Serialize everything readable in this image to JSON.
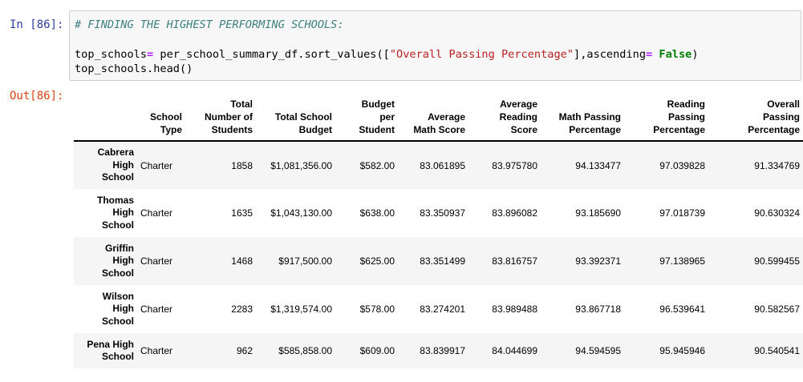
{
  "in_prompt": "In [86]:",
  "out_prompt": "Out[86]:",
  "code": {
    "comment": "# FINDING THE HIGHEST PERFORMING SCHOOLS:",
    "l2_a": "top_schools",
    "l2_op": "=",
    "l2_b": " per_school_summary_df.sort_values([",
    "l2_str": "\"Overall Passing Percentage\"",
    "l2_c": "],ascending",
    "l2_op2": "=",
    "l2_kw": " False",
    "l2_d": ")",
    "l3": "top_schools.head()"
  },
  "table": {
    "columns": [
      "School\nType",
      "Total\nNumber of\nStudents",
      "Total School\nBudget",
      "Budget\nper\nStudent",
      "Average\nMath Score",
      "Average\nReading\nScore",
      "Math Passing\nPercentage",
      "Reading\nPassing\nPercentage",
      "Overall\nPassing\nPercentage"
    ],
    "rows": [
      {
        "school": "Cabrera\nHigh\nSchool",
        "cells": [
          "Charter",
          "1858",
          "$1,081,356.00",
          "$582.00",
          "83.061895",
          "83.975780",
          "94.133477",
          "97.039828",
          "91.334769"
        ]
      },
      {
        "school": "Thomas\nHigh\nSchool",
        "cells": [
          "Charter",
          "1635",
          "$1,043,130.00",
          "$638.00",
          "83.350937",
          "83.896082",
          "93.185690",
          "97.018739",
          "90.630324"
        ]
      },
      {
        "school": "Griffin\nHigh\nSchool",
        "cells": [
          "Charter",
          "1468",
          "$917,500.00",
          "$625.00",
          "83.351499",
          "83.816757",
          "93.392371",
          "97.138965",
          "90.599455"
        ]
      },
      {
        "school": "Wilson\nHigh\nSchool",
        "cells": [
          "Charter",
          "2283",
          "$1,319,574.00",
          "$578.00",
          "83.274201",
          "83.989488",
          "93.867718",
          "96.539641",
          "90.582567"
        ]
      },
      {
        "school": "Pena High\nSchool",
        "cells": [
          "Charter",
          "962",
          "$585,858.00",
          "$609.00",
          "83.839917",
          "84.044699",
          "94.594595",
          "95.945946",
          "90.540541"
        ]
      }
    ]
  }
}
